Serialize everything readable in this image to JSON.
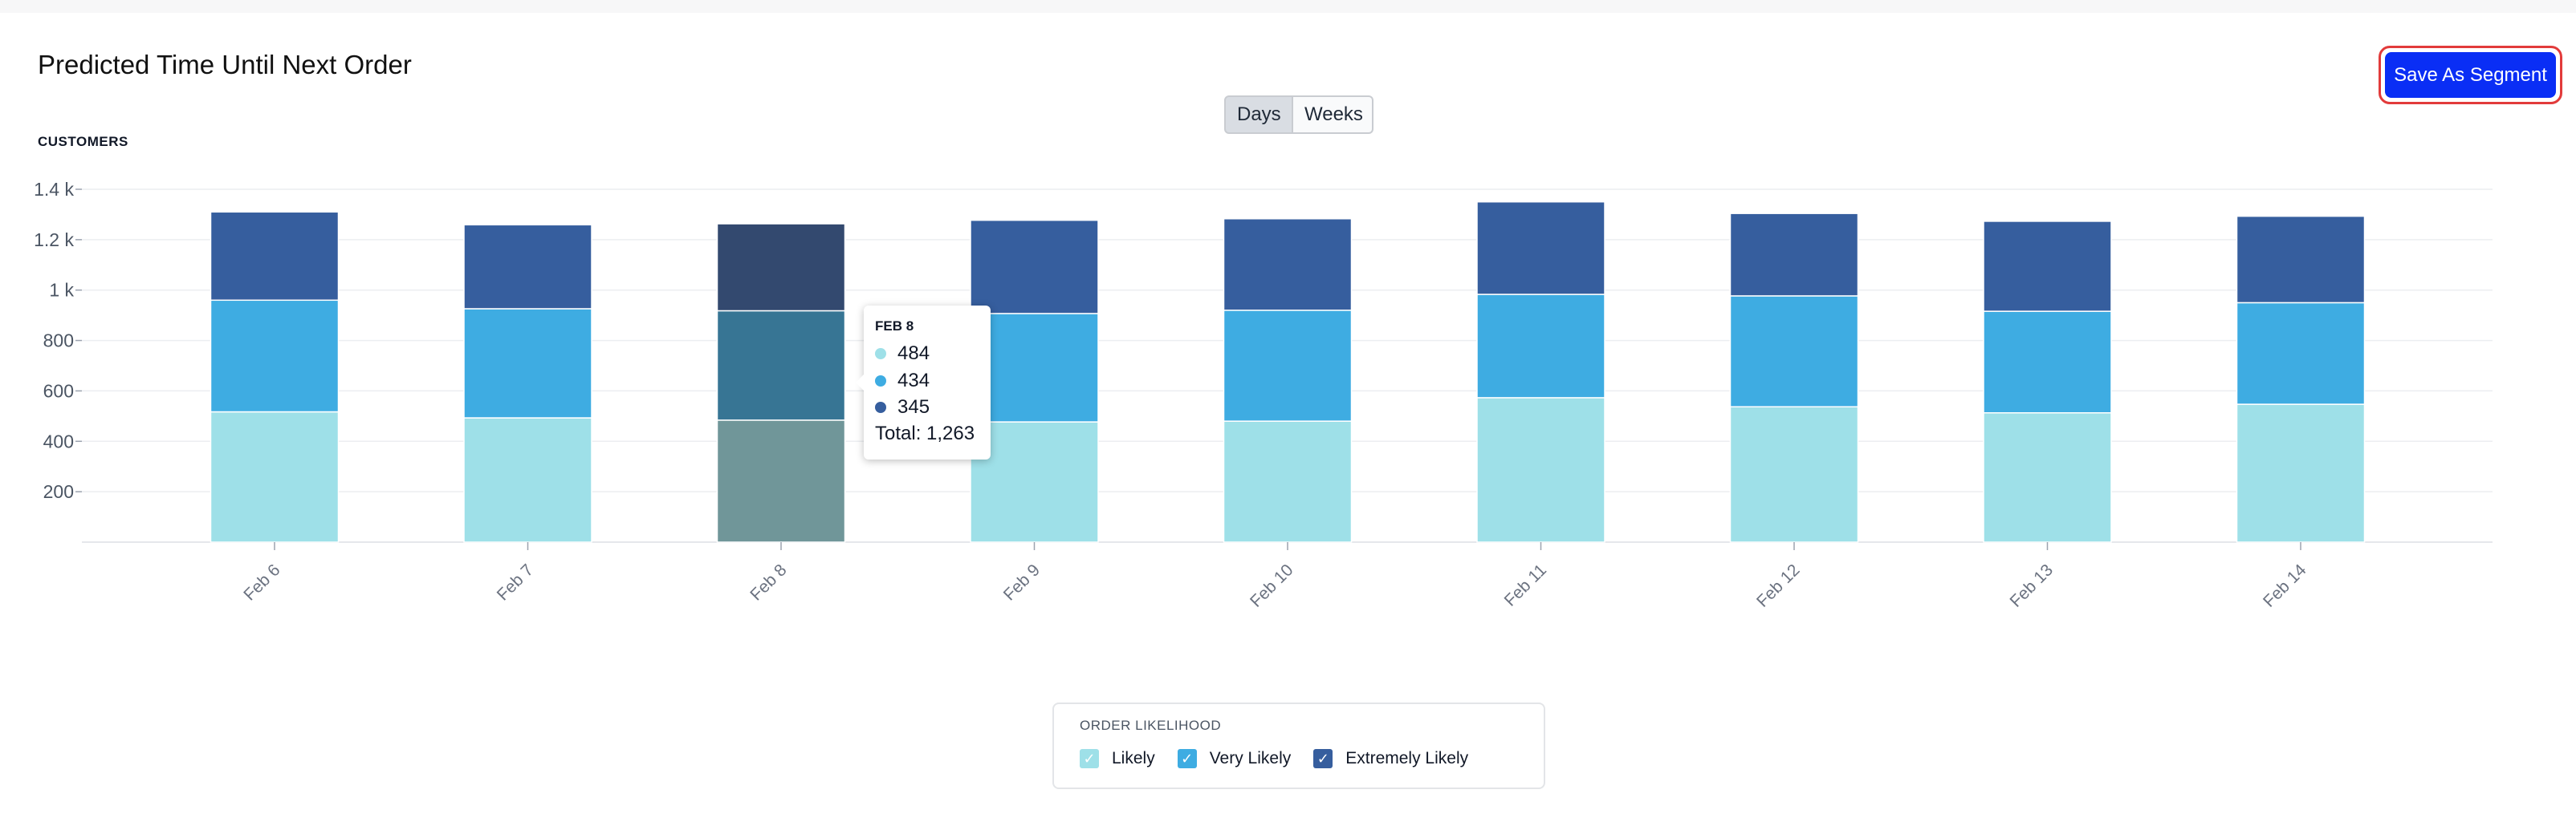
{
  "title": "Predicted Time Until Next Order",
  "save_button": "Save As Segment",
  "toggle": {
    "days": "Days",
    "weeks": "Weeks",
    "selected": "Days"
  },
  "chart_data": {
    "type": "bar",
    "stacked": true,
    "ylabel": "CUSTOMERS",
    "ylim": [
      0,
      1400
    ],
    "yticks": [
      200,
      400,
      600,
      800,
      1000,
      1200,
      1400
    ],
    "ytick_labels": [
      "200",
      "400",
      "600",
      "800",
      "1 k",
      "1.2 k",
      "1.4 k"
    ],
    "grid": true,
    "categories": [
      "Feb 6",
      "Feb 7",
      "Feb 8",
      "Feb 9",
      "Feb 10",
      "Feb 11",
      "Feb 12",
      "Feb 13",
      "Feb 14"
    ],
    "series": [
      {
        "name": "Likely",
        "color": "#9ee0e8",
        "values": [
          517,
          493,
          484,
          477,
          480,
          573,
          537,
          513,
          547
        ]
      },
      {
        "name": "Very Likely",
        "color": "#3eace2",
        "values": [
          443,
          433,
          434,
          430,
          440,
          410,
          440,
          403,
          403
        ]
      },
      {
        "name": "Extremely Likely",
        "color": "#365e9e",
        "values": [
          350,
          333,
          345,
          370,
          363,
          367,
          327,
          357,
          343
        ]
      }
    ],
    "highlighted_index": 2,
    "highlight_colors": [
      "#709699",
      "#377594",
      "#33496f"
    ],
    "legend": {
      "title": "ORDER LIKELIHOOD",
      "position": "bottom-center"
    },
    "tooltip": {
      "title": "FEB 8",
      "rows": [
        {
          "value": "484",
          "color": "#9ee0e8"
        },
        {
          "value": "434",
          "color": "#3eace2"
        },
        {
          "value": "345",
          "color": "#365e9e"
        }
      ],
      "total": "Total: 1,263"
    }
  }
}
